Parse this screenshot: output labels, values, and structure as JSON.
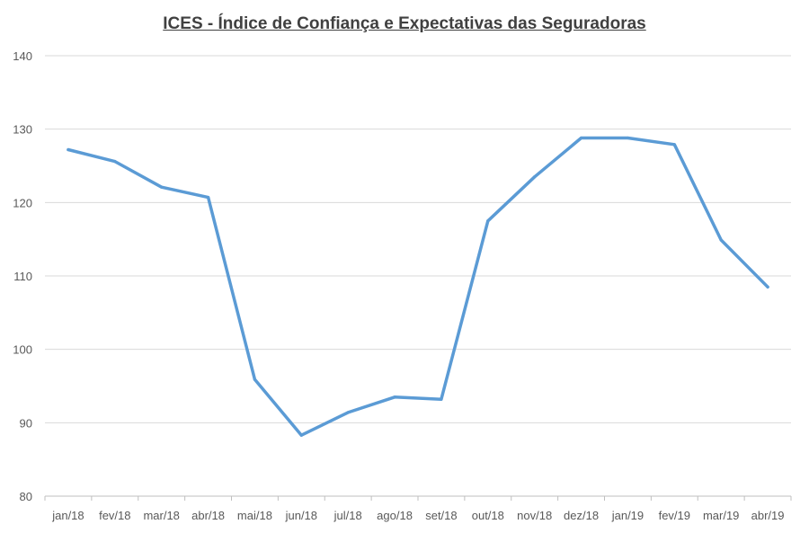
{
  "chart_data": {
    "type": "line",
    "title": "ICES - Índice de Confiança e Expectativas das Seguradoras",
    "categories": [
      "jan/18",
      "fev/18",
      "mar/18",
      "abr/18",
      "mai/18",
      "jun/18",
      "jul/18",
      "ago/18",
      "set/18",
      "out/18",
      "nov/18",
      "dez/18",
      "jan/19",
      "fev/19",
      "mar/19",
      "abr/19"
    ],
    "series": [
      {
        "values": [
          127.2,
          125.6,
          122.1,
          120.7,
          95.9,
          88.3,
          91.4,
          93.5,
          93.2,
          117.5,
          123.5,
          128.8,
          128.8,
          127.9,
          114.9,
          108.5
        ]
      }
    ],
    "ylim": [
      80,
      140
    ],
    "yticks": [
      80,
      90,
      100,
      110,
      120,
      130,
      140
    ],
    "ytick_labels": [
      "80",
      "90",
      "100",
      "110",
      "120",
      "130",
      "140"
    ],
    "grid": true,
    "legend": "none",
    "colors": {
      "line": "#5B9BD5",
      "grid": "#D9D9D9",
      "axis": "#BFBFBF",
      "text": "#595959",
      "title": "#404040"
    }
  }
}
